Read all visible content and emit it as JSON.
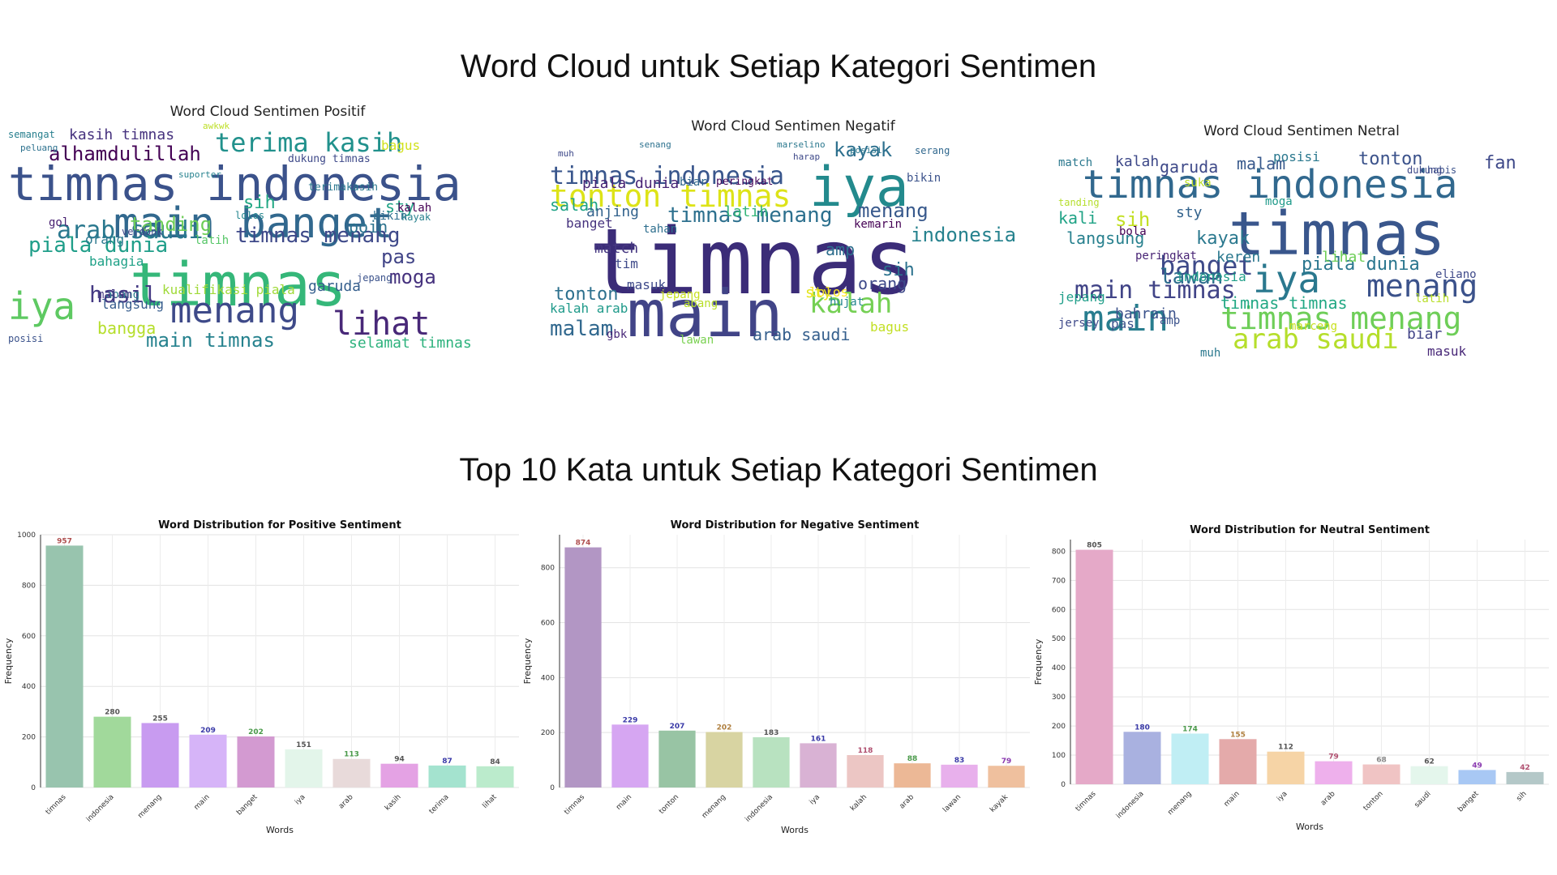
{
  "titles": {
    "wordcloud_section": "Word Cloud  untuk Setiap Kategori Sentimen",
    "bars_section": "Top 10 Kata untuk Setiap Kategori Sentimen"
  },
  "wordclouds": [
    {
      "title": "Word Cloud Sentimen Positif",
      "words": [
        {
          "text": "timnas indonesia",
          "size": 58,
          "color": "#3b528b"
        },
        {
          "text": "main banget",
          "size": 52,
          "color": "#31688e"
        },
        {
          "text": "timnas",
          "size": 74,
          "color": "#35b779"
        },
        {
          "text": "iya",
          "size": 46,
          "color": "#5ec962"
        },
        {
          "text": "menang",
          "size": 44,
          "color": "#3e4a89"
        },
        {
          "text": "lihat",
          "size": 40,
          "color": "#482878"
        },
        {
          "text": "terima kasih",
          "size": 32,
          "color": "#21918c"
        },
        {
          "text": "alhamdulillah",
          "size": 24,
          "color": "#440154"
        },
        {
          "text": "hasil",
          "size": 28,
          "color": "#443983"
        },
        {
          "text": "main timnas",
          "size": 24,
          "color": "#26828e"
        },
        {
          "text": "timnas menang",
          "size": 26,
          "color": "#3e4989"
        },
        {
          "text": "arab saudi",
          "size": 30,
          "color": "#2a788e"
        },
        {
          "text": "piala dunia",
          "size": 26,
          "color": "#1f9e89"
        },
        {
          "text": "tanding",
          "size": 24,
          "color": "#6ece58"
        },
        {
          "text": "bangga",
          "size": 20,
          "color": "#b5de2b"
        },
        {
          "text": "pas",
          "size": 24,
          "color": "#414487"
        },
        {
          "text": "sih",
          "size": 22,
          "color": "#22a884"
        },
        {
          "text": "poin",
          "size": 20,
          "color": "#2c728e"
        },
        {
          "text": "moga",
          "size": 24,
          "color": "#46327e"
        },
        {
          "text": "selamat timnas",
          "size": 18,
          "color": "#2db27d"
        },
        {
          "text": "kasih timnas",
          "size": 18,
          "color": "#46327e"
        },
        {
          "text": "garuda",
          "size": 18,
          "color": "#355f8d"
        },
        {
          "text": "sty",
          "size": 20,
          "color": "#20a386"
        },
        {
          "text": "kualifikasi piala",
          "size": 16,
          "color": "#a0da39"
        },
        {
          "text": "bahagia",
          "size": 16,
          "color": "#1fa187"
        },
        {
          "text": "dukung timnas",
          "size": 13,
          "color": "#3e4989"
        },
        {
          "text": "semangat",
          "size": 12,
          "color": "#277f8e"
        },
        {
          "text": "kalah",
          "size": 14,
          "color": "#440154"
        },
        {
          "text": "langsung",
          "size": 16,
          "color": "#365c8d"
        },
        {
          "text": "abang",
          "size": 14,
          "color": "#287d8e"
        },
        {
          "text": "malam",
          "size": 14,
          "color": "#453781"
        },
        {
          "text": "orang",
          "size": 16,
          "color": "#2a788e"
        },
        {
          "text": "bagus",
          "size": 16,
          "color": "#d2e21b"
        },
        {
          "text": "jepang",
          "size": 12,
          "color": "#3b528b"
        },
        {
          "text": "kayak",
          "size": 12,
          "color": "#27808e"
        },
        {
          "text": "gol",
          "size": 14,
          "color": "#482071"
        },
        {
          "text": "lolos",
          "size": 12,
          "color": "#24868e"
        },
        {
          "text": "bikin",
          "size": 14,
          "color": "#2e6e8e"
        },
        {
          "text": "latih",
          "size": 14,
          "color": "#56c667"
        },
        {
          "text": "verdonk",
          "size": 12,
          "color": "#3f4788"
        },
        {
          "text": "terimakasih",
          "size": 13,
          "color": "#2a778e"
        },
        {
          "text": "posisi",
          "size": 12,
          "color": "#3b528b"
        },
        {
          "text": "suporter",
          "size": 11,
          "color": "#26828e"
        },
        {
          "text": "awkwk",
          "size": 11,
          "color": "#bddf26"
        },
        {
          "text": "peluang",
          "size": 11,
          "color": "#2c718e"
        }
      ]
    },
    {
      "title": "Word Cloud Sentimen Negatif",
      "words": [
        {
          "text": "timnas",
          "size": 112,
          "color": "#3b2c78"
        },
        {
          "text": "main",
          "size": 80,
          "color": "#414487"
        },
        {
          "text": "iya",
          "size": 68,
          "color": "#238a8d"
        },
        {
          "text": "tonton timnas",
          "size": 38,
          "color": "#dde318"
        },
        {
          "text": "timnas indonesia",
          "size": 30,
          "color": "#39568c"
        },
        {
          "text": "timnas menang",
          "size": 26,
          "color": "#2d708e"
        },
        {
          "text": "kalah",
          "size": 34,
          "color": "#75d054"
        },
        {
          "text": "malam",
          "size": 26,
          "color": "#31688e"
        },
        {
          "text": "kayak",
          "size": 24,
          "color": "#2d708e"
        },
        {
          "text": "menang",
          "size": 24,
          "color": "#38598c"
        },
        {
          "text": "arab saudi",
          "size": 20,
          "color": "#355f8d"
        },
        {
          "text": "indonesia",
          "size": 24,
          "color": "#26828e"
        },
        {
          "text": "tonton",
          "size": 22,
          "color": "#2d708e"
        },
        {
          "text": "orang",
          "size": 20,
          "color": "#3e4989"
        },
        {
          "text": "sih",
          "size": 22,
          "color": "#2c728e"
        },
        {
          "text": "amp",
          "size": 20,
          "color": "#2e6e8e"
        },
        {
          "text": "match",
          "size": 18,
          "color": "#453781"
        },
        {
          "text": "salah",
          "size": 20,
          "color": "#20a386"
        },
        {
          "text": "anjing",
          "size": 18,
          "color": "#33638d"
        },
        {
          "text": "latih",
          "size": 18,
          "color": "#34b679"
        },
        {
          "text": "piala dunia",
          "size": 18,
          "color": "#482475"
        },
        {
          "text": "masuk",
          "size": 16,
          "color": "#3e4989"
        },
        {
          "text": "kalah arab",
          "size": 16,
          "color": "#1f9a8a"
        },
        {
          "text": "lolos",
          "size": 16,
          "color": "#fde725"
        },
        {
          "text": "bagus",
          "size": 16,
          "color": "#c2df23"
        },
        {
          "text": "sty",
          "size": 18,
          "color": "#e3e418"
        },
        {
          "text": "jepang",
          "size": 14,
          "color": "#c8e020"
        },
        {
          "text": "tim",
          "size": 16,
          "color": "#3e4989"
        },
        {
          "text": "banget",
          "size": 16,
          "color": "#46337e"
        },
        {
          "text": "bikin",
          "size": 14,
          "color": "#3b528b"
        },
        {
          "text": "abang",
          "size": 14,
          "color": "#b8de29"
        },
        {
          "text": "kemarin",
          "size": 14,
          "color": "#440154"
        },
        {
          "text": "peringkat",
          "size": 13,
          "color": "#46085c"
        },
        {
          "text": "tahan",
          "size": 14,
          "color": "#2e6f8e"
        },
        {
          "text": "hujat",
          "size": 14,
          "color": "#24868e"
        },
        {
          "text": "gbk",
          "size": 14,
          "color": "#482878"
        },
        {
          "text": "lawan",
          "size": 14,
          "color": "#7ad151"
        },
        {
          "text": "biar",
          "size": 14,
          "color": "#31688e"
        },
        {
          "text": "serang",
          "size": 12,
          "color": "#31688e"
        },
        {
          "text": "senang",
          "size": 11,
          "color": "#2c718e"
        },
        {
          "text": "marselino",
          "size": 11,
          "color": "#2a788e"
        },
        {
          "text": "harap",
          "size": 11,
          "color": "#3e4989"
        },
        {
          "text": "posisi",
          "size": 11,
          "color": "#2a788e"
        },
        {
          "text": "muh",
          "size": 11,
          "color": "#3e4989"
        }
      ]
    },
    {
      "title": "Word Cloud Sentimen Netral",
      "words": [
        {
          "text": "timnas indonesia",
          "size": 48,
          "color": "#31688e"
        },
        {
          "text": "timnas",
          "size": 74,
          "color": "#39568c"
        },
        {
          "text": "main",
          "size": 44,
          "color": "#287d8e"
        },
        {
          "text": "iya",
          "size": 46,
          "color": "#2a788e"
        },
        {
          "text": "menang",
          "size": 38,
          "color": "#3b528b"
        },
        {
          "text": "timnas menang",
          "size": 38,
          "color": "#6ece58"
        },
        {
          "text": "arab saudi",
          "size": 34,
          "color": "#b5de2b"
        },
        {
          "text": "banget",
          "size": 32,
          "color": "#3e4a89"
        },
        {
          "text": "main timnas",
          "size": 30,
          "color": "#414487"
        },
        {
          "text": "piala dunia",
          "size": 22,
          "color": "#2a768e"
        },
        {
          "text": "timnas timnas",
          "size": 20,
          "color": "#22a884"
        },
        {
          "text": "langsung",
          "size": 20,
          "color": "#27808e"
        },
        {
          "text": "lawan",
          "size": 26,
          "color": "#2e6e8e"
        },
        {
          "text": "kayak",
          "size": 22,
          "color": "#2a788e"
        },
        {
          "text": "garuda",
          "size": 20,
          "color": "#3e4989"
        },
        {
          "text": "malam",
          "size": 20,
          "color": "#38598c"
        },
        {
          "text": "tonton",
          "size": 22,
          "color": "#3b528b"
        },
        {
          "text": "kali",
          "size": 20,
          "color": "#20a386"
        },
        {
          "text": "sih",
          "size": 24,
          "color": "#c2df23"
        },
        {
          "text": "fan",
          "size": 22,
          "color": "#3e4989"
        },
        {
          "text": "kalah",
          "size": 18,
          "color": "#3e4989"
        },
        {
          "text": "bahrain",
          "size": 18,
          "color": "#3b528b"
        },
        {
          "text": "keren",
          "size": 18,
          "color": "#2a788e"
        },
        {
          "text": "lihat",
          "size": 18,
          "color": "#6ece58"
        },
        {
          "text": "sty",
          "size": 18,
          "color": "#33638d"
        },
        {
          "text": "bola",
          "size": 14,
          "color": "#440154"
        },
        {
          "text": "posisi",
          "size": 16,
          "color": "#2a788e"
        },
        {
          "text": "biar",
          "size": 18,
          "color": "#414487"
        },
        {
          "text": "jepang",
          "size": 16,
          "color": "#1f9e89"
        },
        {
          "text": "jersey",
          "size": 14,
          "color": "#3e4989"
        },
        {
          "text": "pas",
          "size": 16,
          "color": "#3b528b"
        },
        {
          "text": "match",
          "size": 14,
          "color": "#2a788e"
        },
        {
          "text": "masuk",
          "size": 16,
          "color": "#482878"
        },
        {
          "text": "indonesia",
          "size": 16,
          "color": "#1f9e89"
        },
        {
          "text": "amp",
          "size": 14,
          "color": "#3b528b"
        },
        {
          "text": "muh",
          "size": 14,
          "color": "#2a788e"
        },
        {
          "text": "peringkat",
          "size": 14,
          "color": "#482475"
        },
        {
          "text": "marceng",
          "size": 14,
          "color": "#c8e020"
        },
        {
          "text": "latih",
          "size": 14,
          "color": "#b8de29"
        },
        {
          "text": "suka",
          "size": 14,
          "color": "#bddf26"
        },
        {
          "text": "moga",
          "size": 14,
          "color": "#1f9a8a"
        },
        {
          "text": "eliano",
          "size": 14,
          "color": "#3e4989"
        },
        {
          "text": "tanding",
          "size": 12,
          "color": "#b5de2b"
        },
        {
          "text": "habis",
          "size": 12,
          "color": "#3b528b"
        },
        {
          "text": "dukung",
          "size": 12,
          "color": "#3e4989"
        }
      ]
    }
  ],
  "chart_data": [
    {
      "type": "bar",
      "title": "Word Distribution for Positive Sentiment",
      "xlabel": "Words",
      "ylabel": "Frequency",
      "categories": [
        "timnas",
        "indonesia",
        "menang",
        "main",
        "banget",
        "iya",
        "arab",
        "kasih",
        "terima",
        "lihat"
      ],
      "values": [
        957,
        280,
        255,
        209,
        202,
        151,
        113,
        94,
        87,
        84
      ],
      "colors": [
        "#98c4ae",
        "#a1d99b",
        "#c89bf0",
        "#d6b4f8",
        "#d39ad1",
        "#e3f5ea",
        "#e8dada",
        "#e4a2e4",
        "#a4e3cf",
        "#bbebcc"
      ],
      "label_colors": [
        "#b05050",
        "#555555",
        "#555555",
        "#3a3aa8",
        "#4a9a4a",
        "#555555",
        "#4a9a4a",
        "#555555",
        "#3a3aa8",
        "#555555"
      ],
      "yticks": [
        0,
        200,
        400,
        600,
        800,
        1000
      ],
      "ylim": [
        0,
        1000
      ]
    },
    {
      "type": "bar",
      "title": "Word Distribution for Negative Sentiment",
      "xlabel": "Words",
      "ylabel": "Frequency",
      "categories": [
        "timnas",
        "main",
        "tonton",
        "menang",
        "indonesia",
        "iya",
        "kalah",
        "arab",
        "lawan",
        "kayak"
      ],
      "values": [
        874,
        229,
        207,
        202,
        183,
        161,
        118,
        88,
        83,
        79
      ],
      "colors": [
        "#b296c4",
        "#d6a6f2",
        "#98c4a4",
        "#d8d4a2",
        "#b8e2c0",
        "#d9b2d4",
        "#ecc6c4",
        "#ecb896",
        "#e8b0ec",
        "#efc09e"
      ],
      "label_colors": [
        "#b05050",
        "#3a3aa8",
        "#3a3aa8",
        "#b08040",
        "#555555",
        "#3a3aa8",
        "#b05070",
        "#4a9a4a",
        "#3a3aa8",
        "#8a3ab0"
      ],
      "yticks": [
        0,
        200,
        400,
        600,
        800
      ],
      "ylim": [
        0,
        920
      ]
    },
    {
      "type": "bar",
      "title": "Word Distribution for Neutral Sentiment",
      "xlabel": "Words",
      "ylabel": "Frequency",
      "categories": [
        "timnas",
        "indonesia",
        "menang",
        "main",
        "iya",
        "arab",
        "tonton",
        "saudi",
        "banget",
        "sih"
      ],
      "values": [
        805,
        180,
        174,
        155,
        112,
        79,
        68,
        62,
        49,
        42
      ],
      "colors": [
        "#e5a9c8",
        "#a9b1e0",
        "#c0eef4",
        "#e4aaaa",
        "#f6d4a6",
        "#eeb0ec",
        "#f0c4c4",
        "#e4f6ec",
        "#a8c8f4",
        "#b4c8c8"
      ],
      "label_colors": [
        "#555555",
        "#3a3aa8",
        "#4a9a4a",
        "#b08040",
        "#555555",
        "#b05070",
        "#888888",
        "#555555",
        "#8a3ab0",
        "#b05070"
      ],
      "yticks": [
        0,
        100,
        200,
        300,
        400,
        500,
        600,
        700,
        800
      ],
      "ylim": [
        0,
        840
      ]
    }
  ]
}
